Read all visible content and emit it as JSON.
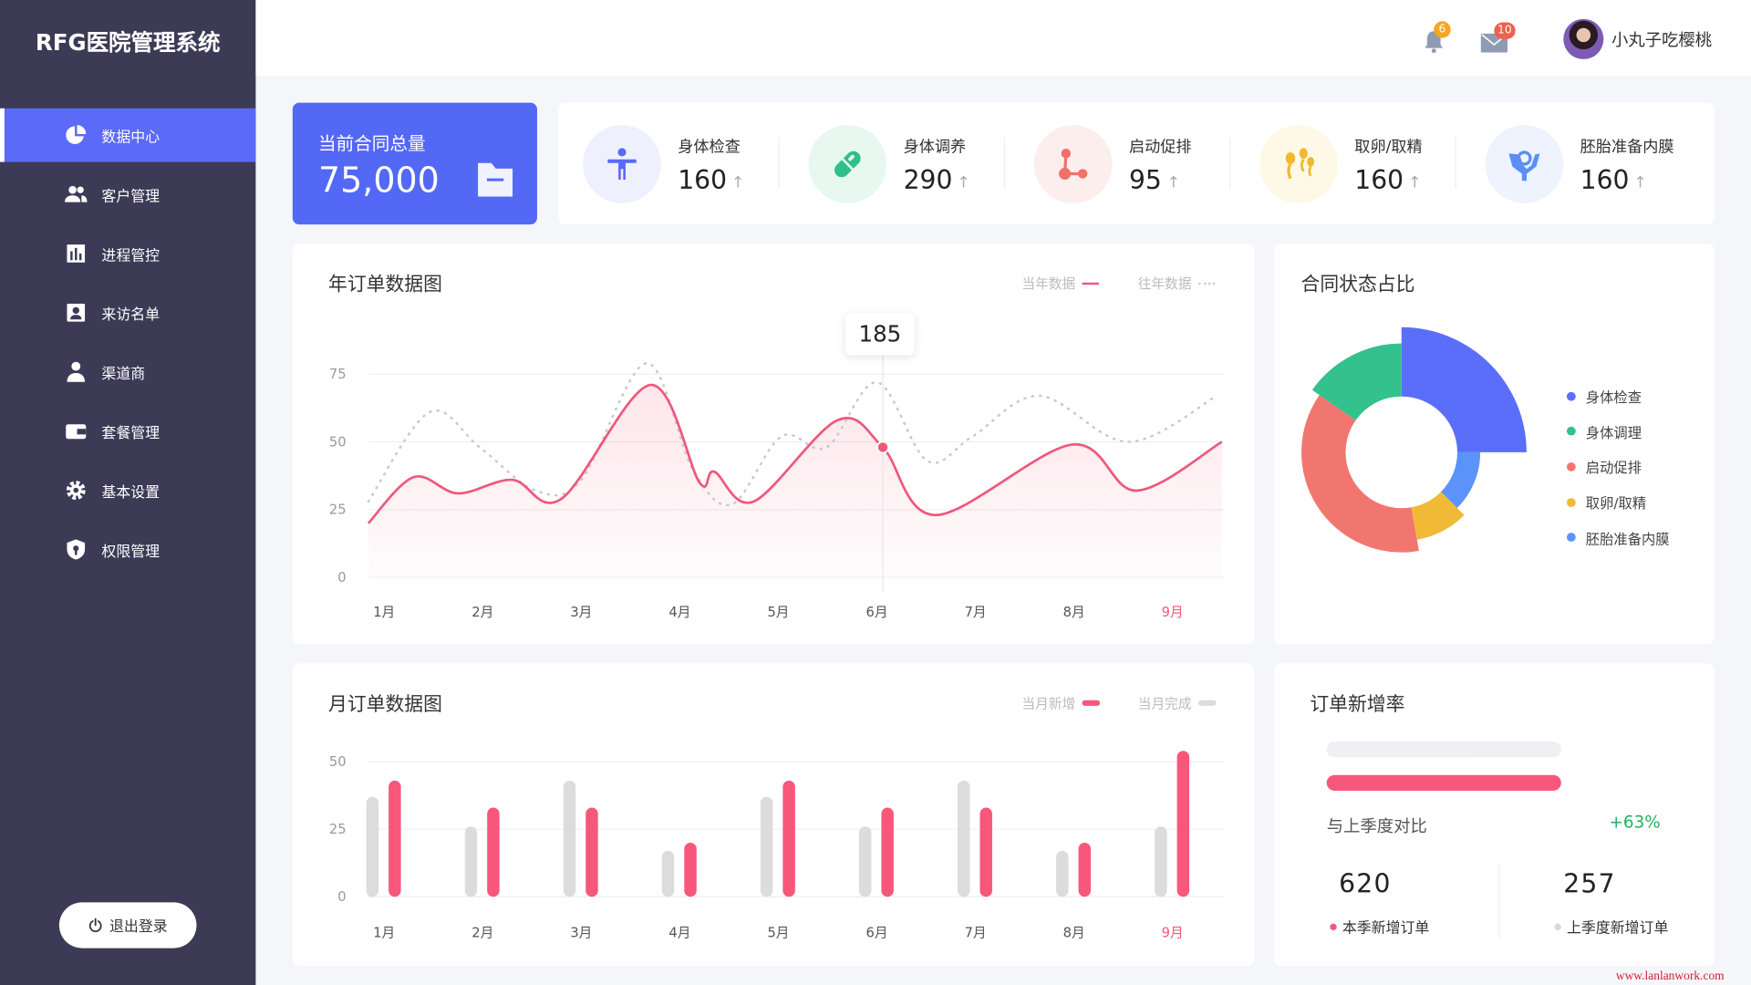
{
  "app": {
    "title": "RFG医院管理系统"
  },
  "sidebar": {
    "items": [
      {
        "label": "数据中心",
        "icon": "pie-chart-icon",
        "active": true
      },
      {
        "label": "客户管理",
        "icon": "users-icon"
      },
      {
        "label": "进程管控",
        "icon": "bar-chart-icon"
      },
      {
        "label": "来访名单",
        "icon": "contact-card-icon"
      },
      {
        "label": "渠道商",
        "icon": "person-icon"
      },
      {
        "label": "套餐管理",
        "icon": "wallet-icon"
      },
      {
        "label": "基本设置",
        "icon": "gear-icon"
      },
      {
        "label": "权限管理",
        "icon": "shield-icon"
      }
    ],
    "logout": "退出登录"
  },
  "header": {
    "notifications": "6",
    "messages": "10",
    "user_name": "小丸子吃樱桃"
  },
  "total": {
    "label": "当前合同总量",
    "value": "75,000"
  },
  "stats": [
    {
      "label": "身体检查",
      "value": "160",
      "arrow": "↑",
      "color": "#5b6af7",
      "bg": "#eef0fd",
      "icon": "body-icon"
    },
    {
      "label": "身体调养",
      "value": "290",
      "arrow": "↑",
      "color": "#2fbf8a",
      "bg": "#e8f8f1",
      "icon": "pill-icon"
    },
    {
      "label": "启动促排",
      "value": "95",
      "arrow": "↑",
      "color": "#f0716a",
      "bg": "#fdeeee",
      "icon": "molecule-icon"
    },
    {
      "label": "取卵/取精",
      "value": "160",
      "arrow": "↑",
      "color": "#f0b92f",
      "bg": "#fef8e6",
      "icon": "sperm-icon"
    },
    {
      "label": "胚胎准备内膜",
      "value": "160",
      "arrow": "↑",
      "color": "#5a8ff7",
      "bg": "#eef3fe",
      "icon": "hands-care-icon"
    }
  ],
  "chart_data": [
    {
      "type": "line",
      "title": "年订单数据图",
      "categories": [
        "1月",
        "2月",
        "3月",
        "4月",
        "5月",
        "6月",
        "7月",
        "8月",
        "9月"
      ],
      "highlight_category": "9月",
      "yticks": [
        0,
        25,
        50,
        75
      ],
      "ylim": [
        0,
        80
      ],
      "grid": true,
      "legend": "top-right",
      "series": [
        {
          "name": "当年数据",
          "color": "#f0577a",
          "style": "solid",
          "area": true,
          "points": [
            [
              0.84,
              20
            ],
            [
              1.3,
              37
            ],
            [
              1.75,
              31
            ],
            [
              2.3,
              36
            ],
            [
              2.8,
              29
            ],
            [
              3.7,
              71
            ],
            [
              4.2,
              35
            ],
            [
              4.35,
              39
            ],
            [
              4.75,
              28
            ],
            [
              5.6,
              58
            ],
            [
              6.06,
              48
            ],
            [
              6.6,
              23
            ],
            [
              7.98,
              49
            ],
            [
              8.63,
              32
            ],
            [
              9.5,
              50
            ]
          ]
        },
        {
          "name": "往年数据",
          "color": "#cccccc",
          "style": "dotted",
          "points": [
            [
              0.84,
              28
            ],
            [
              1.46,
              61
            ],
            [
              1.97,
              48
            ],
            [
              2.54,
              32
            ],
            [
              3.0,
              36
            ],
            [
              3.66,
              79
            ],
            [
              4.13,
              40
            ],
            [
              4.53,
              27
            ],
            [
              5.03,
              52
            ],
            [
              5.49,
              48
            ],
            [
              6.0,
              72
            ],
            [
              6.51,
              43
            ],
            [
              6.97,
              52
            ],
            [
              7.65,
              67
            ],
            [
              8.55,
              50
            ],
            [
              9.45,
              67
            ]
          ]
        }
      ],
      "tooltip": {
        "value": "185",
        "category": "6月"
      }
    },
    {
      "type": "bar",
      "title": "月订单数据图",
      "categories": [
        "1月",
        "2月",
        "3月",
        "4月",
        "5月",
        "6月",
        "7月",
        "8月",
        "9月"
      ],
      "highlight_category": "9月",
      "yticks": [
        0,
        25,
        50
      ],
      "ylim": [
        0,
        55
      ],
      "grid": true,
      "legend": "top-right",
      "series": [
        {
          "name": "当月新增",
          "color": "#f7577b",
          "values": [
            43,
            33,
            33,
            20,
            43,
            33,
            33,
            20,
            54
          ]
        },
        {
          "name": "当月完成",
          "color": "#dcdcdf",
          "values": [
            37,
            26,
            43,
            17,
            37,
            26,
            43,
            17,
            26
          ]
        }
      ]
    },
    {
      "type": "pie",
      "title": "合同状态占比",
      "variant": "rose",
      "legend": "right",
      "slices": [
        {
          "name": "身体检查",
          "color": "#5b6ef9",
          "share": 25,
          "magnitude": 100
        },
        {
          "name": "胚胎准备内膜",
          "color": "#5b93fb",
          "share": 12.5,
          "magnitude": 63
        },
        {
          "name": "取卵/取精",
          "color": "#f0ba37",
          "share": 9.7,
          "magnitude": 71
        },
        {
          "name": "启动促排",
          "color": "#f27670",
          "share": 37.5,
          "magnitude": 80
        },
        {
          "name": "身体调理",
          "color": "#33c18e",
          "share": 15.3,
          "magnitude": 87
        }
      ],
      "legend_order": [
        0,
        4,
        3,
        2,
        1
      ]
    }
  ],
  "rate": {
    "title": "订单新增率",
    "previous_progress": 0.6,
    "current_progress": 0.98,
    "compare_label": "与上季度对比",
    "change": "+63%",
    "current": {
      "value": "620",
      "label": "本季新增订单",
      "dot": "#f7577b"
    },
    "previous": {
      "value": "257",
      "label": "上季度新增订单",
      "dot": "#d8d8dc"
    }
  },
  "watermark": "www.lanlanwork.com"
}
